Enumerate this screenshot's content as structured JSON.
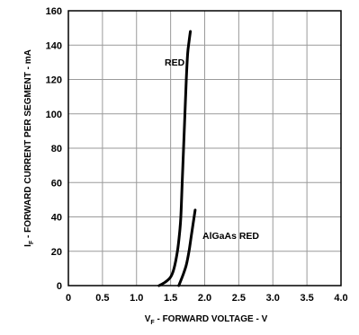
{
  "chart_data": {
    "type": "line",
    "xlabel_main": "V",
    "xlabel_sub": "F",
    "xlabel_rest": " - FORWARD VOLTAGE - V",
    "ylabel_main": "I",
    "ylabel_sub": "F",
    "ylabel_rest": " - FORWARD CURRENT PER SEGMENT - mA",
    "xlim": [
      0,
      4.0
    ],
    "ylim": [
      0,
      160
    ],
    "x_ticks": [
      "0",
      "0.5",
      "1.0",
      "1.5",
      "2.0",
      "2.5",
      "3.0",
      "3.5",
      "4.0"
    ],
    "y_ticks": [
      "0",
      "20",
      "40",
      "60",
      "80",
      "100",
      "120",
      "140",
      "160"
    ],
    "grid": true,
    "series": [
      {
        "name": "RED",
        "x": [
          1.33,
          1.42,
          1.5,
          1.55,
          1.6,
          1.63,
          1.65,
          1.67,
          1.69,
          1.71,
          1.73,
          1.75,
          1.77,
          1.79
        ],
        "y": [
          0,
          2,
          5,
          10,
          20,
          30,
          40,
          60,
          80,
          100,
          120,
          135,
          142,
          148
        ]
      },
      {
        "name": "AlGaAs RED",
        "x": [
          1.62,
          1.68,
          1.73,
          1.77,
          1.8,
          1.83,
          1.86
        ],
        "y": [
          0,
          6,
          12,
          20,
          28,
          36,
          44
        ]
      }
    ]
  }
}
